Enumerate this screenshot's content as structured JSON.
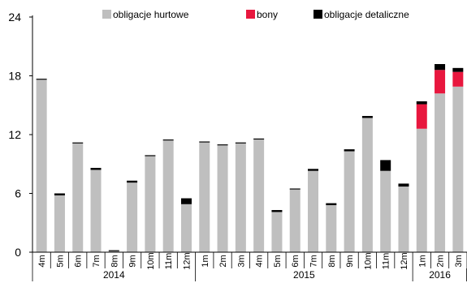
{
  "chart_data": {
    "type": "bar",
    "stacked": true,
    "title": "",
    "xlabel": "",
    "ylabel": "",
    "ylim": [
      0,
      24
    ],
    "yticks": [
      0,
      6,
      12,
      18,
      24
    ],
    "grid": false,
    "legend_position": "top",
    "categories": [
      "4m",
      "5m",
      "6m",
      "7m",
      "8m",
      "9m",
      "10m",
      "11m",
      "12m",
      "1m",
      "2m",
      "3m",
      "4m",
      "5m",
      "6m",
      "7m",
      "8m",
      "9m",
      "10m",
      "11m",
      "12m",
      "1m",
      "2m",
      "3m"
    ],
    "year_groups": [
      {
        "label": "2014",
        "start": 0,
        "end": 8
      },
      {
        "label": "2015",
        "start": 9,
        "end": 20
      },
      {
        "label": "2016",
        "start": 21,
        "end": 23
      }
    ],
    "series": [
      {
        "name": "obligacje hurtowe",
        "color": "#BFBFBF",
        "values": [
          17.6,
          5.8,
          11.1,
          8.4,
          0.1,
          7.1,
          9.8,
          11.4,
          4.9,
          11.2,
          10.9,
          11.1,
          11.5,
          4.1,
          6.4,
          8.3,
          4.8,
          10.3,
          13.7,
          8.3,
          6.7,
          12.6,
          16.2,
          16.9
        ]
      },
      {
        "name": "bony",
        "color": "#E8173E",
        "values": [
          0,
          0,
          0,
          0,
          0,
          0,
          0,
          0,
          0,
          0,
          0,
          0,
          0,
          0,
          0,
          0,
          0,
          0,
          0,
          0,
          0,
          2.5,
          2.4,
          1.5
        ]
      },
      {
        "name": "obligacje detaliczne",
        "color": "#000000",
        "values": [
          0.1,
          0.2,
          0.1,
          0.2,
          0.1,
          0.2,
          0.1,
          0.1,
          0.6,
          0.1,
          0.1,
          0.1,
          0.1,
          0.2,
          0.1,
          0.2,
          0.2,
          0.2,
          0.2,
          1.1,
          0.3,
          0.3,
          0.6,
          0.4
        ]
      }
    ]
  }
}
